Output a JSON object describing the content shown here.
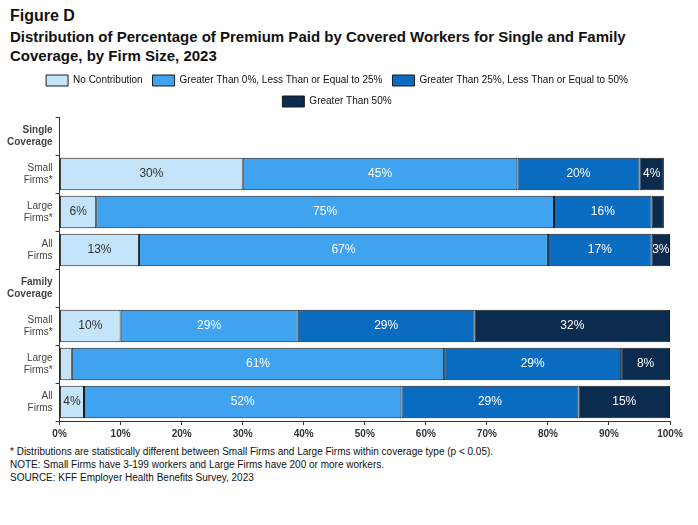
{
  "chart_data": {
    "type": "bar",
    "title": "Figure D",
    "subtitle": "Distribution of Percentage of Premium Paid by Covered Workers for Single and Family Coverage, by Firm Size, 2023",
    "orientation": "horizontal",
    "stacked": true,
    "data_labels": true,
    "legend": "top",
    "grid": false,
    "categories": [
      "Single Coverage",
      "Small Firms*",
      "Large Firms*",
      "All Firms",
      "Family Coverage",
      "Small Firms*",
      "Large Firms*",
      "All Firms"
    ],
    "series": [
      {
        "name": "No Contribution",
        "color": "#c3e4f9",
        "values": [
          null,
          30,
          6,
          13,
          null,
          10,
          2,
          4
        ],
        "value_labels": [
          null,
          "30%",
          "6%",
          "13%",
          null,
          "10%",
          null,
          "4%"
        ]
      },
      {
        "name": "Greater Than 0%, Less Than or Equal to 25%",
        "color": "#3fa3ef",
        "values": [
          null,
          45,
          75,
          67,
          null,
          29,
          61,
          52
        ],
        "value_labels": [
          null,
          "45%",
          "75%",
          "67%",
          null,
          "29%",
          "61%",
          "52%"
        ]
      },
      {
        "name": "Greater Than 25%, Less Than or Equal to 50%",
        "color": "#0a6cc0",
        "values": [
          null,
          20,
          16,
          17,
          null,
          29,
          29,
          29
        ],
        "value_labels": [
          null,
          "20%",
          "16%",
          "17%",
          null,
          "29%",
          "29%",
          "29%"
        ]
      },
      {
        "name": "Greater Than 50%",
        "color": "#0b2c4e",
        "values": [
          null,
          4,
          2,
          3,
          null,
          32,
          8,
          15
        ],
        "value_labels": [
          null,
          "4%",
          null,
          "3%",
          null,
          "32%",
          "8%",
          "15%"
        ]
      }
    ],
    "xlim": [
      0,
      100
    ],
    "xticks": [
      {
        "value": 0,
        "label": "0%"
      },
      {
        "value": 10,
        "label": "10%"
      },
      {
        "value": 20,
        "label": "20%"
      },
      {
        "value": 30,
        "label": "30%"
      },
      {
        "value": 40,
        "label": "40%"
      },
      {
        "value": 50,
        "label": "50%"
      },
      {
        "value": 60,
        "label": "60%"
      },
      {
        "value": 70,
        "label": "70%"
      },
      {
        "value": 80,
        "label": "80%"
      },
      {
        "value": 90,
        "label": "90%"
      },
      {
        "value": 100,
        "label": "100%"
      }
    ],
    "notes": [
      "* Distributions are statistically different between Small Firms and Large Firms within coverage type (p < 0.05).",
      "NOTE: Small Firms have 3-199 workers and Large Firms have 200 or more workers.",
      "SOURCE: KFF Employer Health Benefits Survey, 2023"
    ]
  }
}
